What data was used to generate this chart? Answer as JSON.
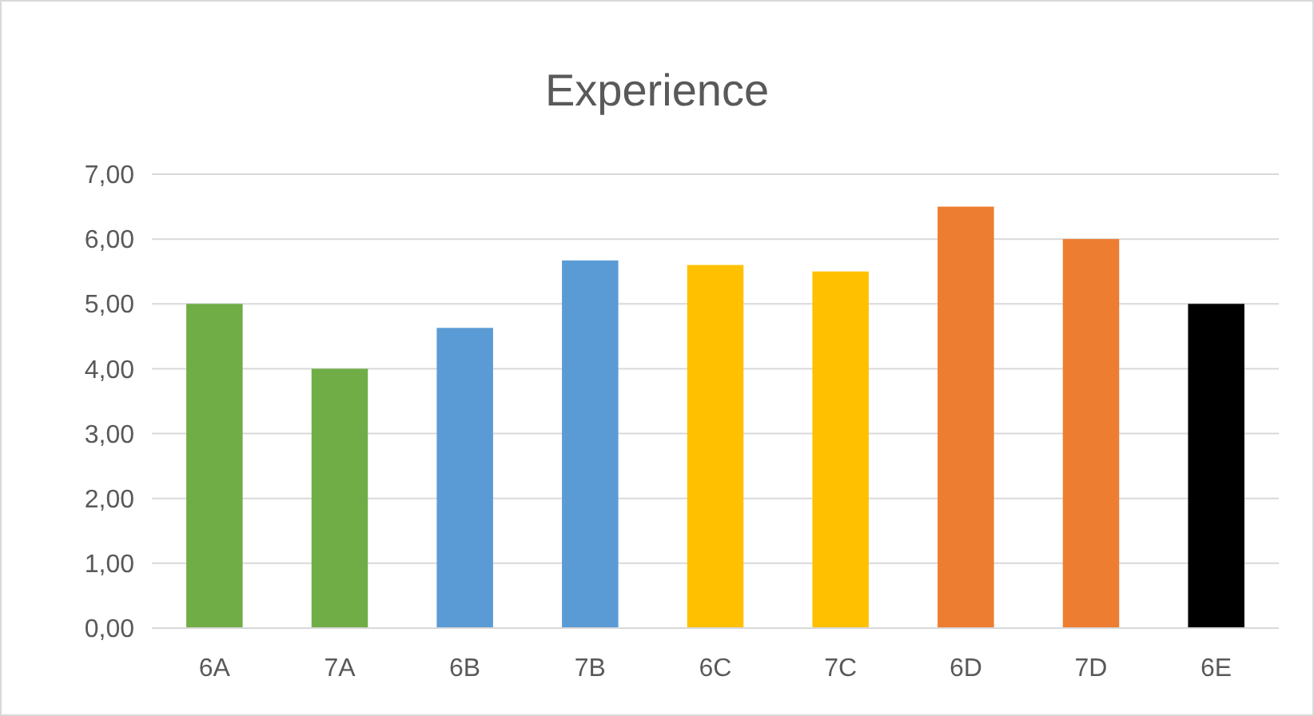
{
  "chart_data": {
    "type": "bar",
    "title": "Experience",
    "categories": [
      "6A",
      "7A",
      "6B",
      "7B",
      "6C",
      "7C",
      "6D",
      "7D",
      "6E"
    ],
    "values": [
      5.0,
      4.0,
      4.63,
      5.67,
      5.6,
      5.5,
      6.5,
      6.0,
      5.0
    ],
    "colors": [
      "#70ad47",
      "#70ad47",
      "#5b9bd5",
      "#5b9bd5",
      "#ffc000",
      "#ffc000",
      "#ed7d31",
      "#ed7d31",
      "#000000"
    ],
    "ylim": [
      0,
      7
    ],
    "yticks": [
      {
        "value": 0,
        "label": "0,00"
      },
      {
        "value": 1,
        "label": "1,00"
      },
      {
        "value": 2,
        "label": "2,00"
      },
      {
        "value": 3,
        "label": "3,00"
      },
      {
        "value": 4,
        "label": "4,00"
      },
      {
        "value": 5,
        "label": "5,00"
      },
      {
        "value": 6,
        "label": "6,00"
      },
      {
        "value": 7,
        "label": "7,00"
      }
    ],
    "grid": "y"
  }
}
